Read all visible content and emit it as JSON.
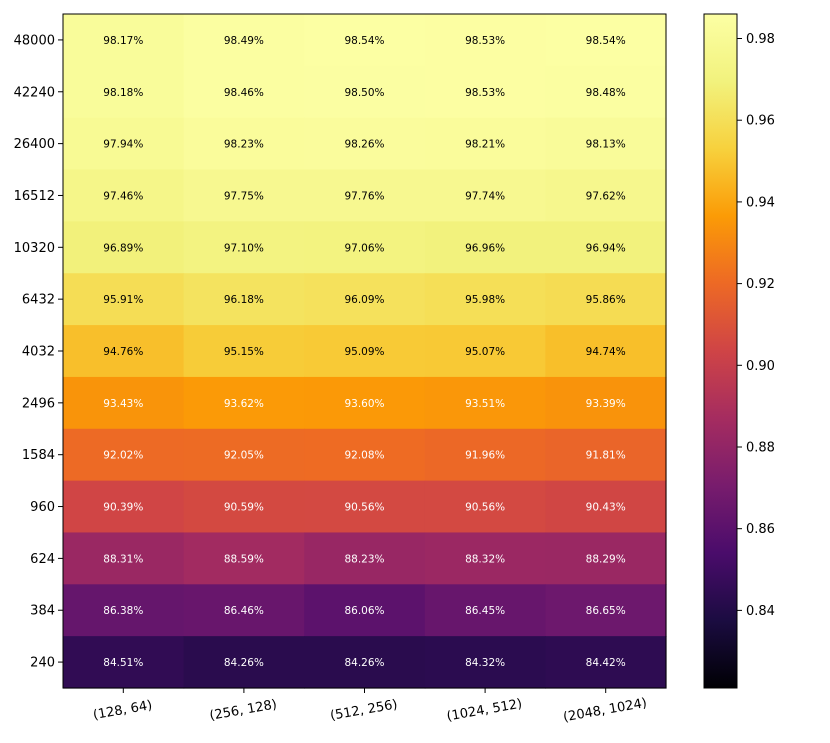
{
  "chart_data": {
    "type": "heatmap",
    "title": "",
    "xlabel": "",
    "ylabel": "",
    "x_categories": [
      "(128, 64)",
      "(256, 128)",
      "(512, 256)",
      "(1024, 512)",
      "(2048, 1024)"
    ],
    "y_categories": [
      "48000",
      "42240",
      "26400",
      "16512",
      "10320",
      "6432",
      "4032",
      "2496",
      "1584",
      "960",
      "624",
      "384",
      "240"
    ],
    "values": [
      [
        0.9817,
        0.9849,
        0.9854,
        0.9853,
        0.9854
      ],
      [
        0.9818,
        0.9846,
        0.985,
        0.9853,
        0.9848
      ],
      [
        0.9794,
        0.9823,
        0.9826,
        0.9821,
        0.9813
      ],
      [
        0.9746,
        0.9775,
        0.9776,
        0.9774,
        0.9762
      ],
      [
        0.9689,
        0.971,
        0.9706,
        0.9696,
        0.9694
      ],
      [
        0.9591,
        0.9618,
        0.9609,
        0.9598,
        0.9586
      ],
      [
        0.9476,
        0.9515,
        0.9509,
        0.9507,
        0.9474
      ],
      [
        0.9343,
        0.9362,
        0.936,
        0.9351,
        0.9339
      ],
      [
        0.9202,
        0.9205,
        0.9208,
        0.9196,
        0.9181
      ],
      [
        0.9039,
        0.9059,
        0.9056,
        0.9056,
        0.9043
      ],
      [
        0.8831,
        0.8859,
        0.8823,
        0.8832,
        0.8829
      ],
      [
        0.8638,
        0.8646,
        0.8606,
        0.8645,
        0.8665
      ],
      [
        0.8451,
        0.8426,
        0.8426,
        0.8432,
        0.8442
      ]
    ],
    "cell_labels": [
      [
        "98.17%",
        "98.49%",
        "98.54%",
        "98.53%",
        "98.54%"
      ],
      [
        "98.18%",
        "98.46%",
        "98.50%",
        "98.53%",
        "98.48%"
      ],
      [
        "97.94%",
        "98.23%",
        "98.26%",
        "98.21%",
        "98.13%"
      ],
      [
        "97.46%",
        "97.75%",
        "97.76%",
        "97.74%",
        "97.62%"
      ],
      [
        "96.89%",
        "97.10%",
        "97.06%",
        "96.96%",
        "96.94%"
      ],
      [
        "95.91%",
        "96.18%",
        "96.09%",
        "95.98%",
        "95.86%"
      ],
      [
        "94.76%",
        "95.15%",
        "95.09%",
        "95.07%",
        "94.74%"
      ],
      [
        "93.43%",
        "93.62%",
        "93.60%",
        "93.51%",
        "93.39%"
      ],
      [
        "92.02%",
        "92.05%",
        "92.08%",
        "91.96%",
        "91.81%"
      ],
      [
        "90.39%",
        "90.59%",
        "90.56%",
        "90.56%",
        "90.43%"
      ],
      [
        "88.31%",
        "88.59%",
        "88.23%",
        "88.32%",
        "88.29%"
      ],
      [
        "86.38%",
        "86.46%",
        "86.06%",
        "86.45%",
        "86.65%"
      ],
      [
        "84.51%",
        "84.26%",
        "84.26%",
        "84.32%",
        "84.42%"
      ]
    ],
    "colormap": "inferno",
    "colorbar": {
      "vmin": 0.821,
      "vmax": 0.986,
      "ticks": [
        0.84,
        0.86,
        0.88,
        0.9,
        0.92,
        0.94,
        0.96,
        0.98
      ],
      "tick_labels": [
        "0.84",
        "0.86",
        "0.88",
        "0.90",
        "0.92",
        "0.94",
        "0.96",
        "0.98"
      ]
    },
    "legend": "colorbar-right",
    "grid": false,
    "label_text_colors": {
      "dark_cells": "#ffffff",
      "light_cells": "#000000"
    },
    "light_cell_threshold": 0.94
  }
}
